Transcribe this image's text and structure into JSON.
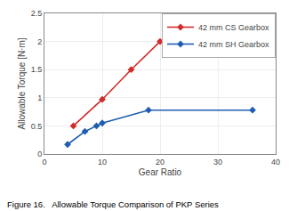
{
  "chart_data": {
    "type": "line",
    "xlabel": "Gear Ratio",
    "ylabel": "Allowable Torque [N·m]",
    "annotations": [
      "Figure 16.   Allowable Torque Comparison of PKP Series"
    ],
    "series": [
      {
        "name": "42 mm CS Gearbox",
        "color": "#d12b2b",
        "marker": "diamond",
        "x": [
          5,
          10,
          15,
          20
        ],
        "values": [
          0.5,
          0.97,
          1.5,
          2.0
        ]
      },
      {
        "name": "42 mm SH Gearbox",
        "color": "#1f5db0",
        "marker": "diamond",
        "x": [
          4,
          7,
          9,
          10,
          18,
          36
        ],
        "values": [
          0.17,
          0.4,
          0.5,
          0.55,
          0.78,
          0.78
        ]
      }
    ],
    "xlim": [
      0,
      40
    ],
    "xticks": [
      0,
      10,
      20,
      30,
      40
    ],
    "ylim": [
      0,
      2.5
    ],
    "yticks": [
      0,
      0.5,
      1,
      1.5,
      2,
      2.5
    ],
    "grid": true,
    "legend": "upper right"
  }
}
